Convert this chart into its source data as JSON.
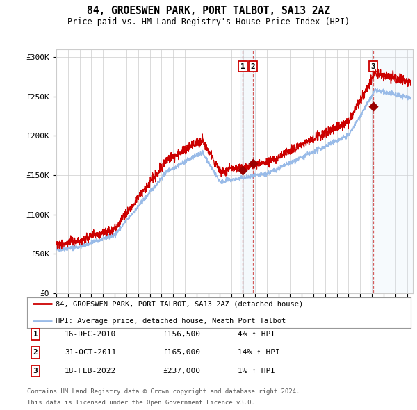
{
  "title": "84, GROESWEN PARK, PORT TALBOT, SA13 2AZ",
  "subtitle": "Price paid vs. HM Land Registry's House Price Index (HPI)",
  "legend_line1": "84, GROESWEN PARK, PORT TALBOT, SA13 2AZ (detached house)",
  "legend_line2": "HPI: Average price, detached house, Neath Port Talbot",
  "footer1": "Contains HM Land Registry data © Crown copyright and database right 2024.",
  "footer2": "This data is licensed under the Open Government Licence v3.0.",
  "transactions": [
    {
      "num": 1,
      "date": "16-DEC-2010",
      "price": "£156,500",
      "hpi": "4% ↑ HPI",
      "year": 2010.96
    },
    {
      "num": 2,
      "date": "31-OCT-2011",
      "price": "£165,000",
      "hpi": "14% ↑ HPI",
      "year": 2011.83
    },
    {
      "num": 3,
      "date": "18-FEB-2022",
      "price": "£237,000",
      "hpi": "1% ↑ HPI",
      "year": 2022.12
    }
  ],
  "sale_prices": [
    156500,
    165000,
    237000
  ],
  "sale_years": [
    2010.96,
    2011.83,
    2022.12
  ],
  "ylim": [
    0,
    310000
  ],
  "xlim_start": 1995.0,
  "xlim_end": 2025.5,
  "hpi_color": "#99bbe8",
  "price_color": "#cc0000",
  "sale_dot_color": "#990000",
  "vline_color": "#cc3333",
  "shade_color": "#d6e8f7",
  "grid_color": "#cccccc",
  "background_color": "#ffffff"
}
